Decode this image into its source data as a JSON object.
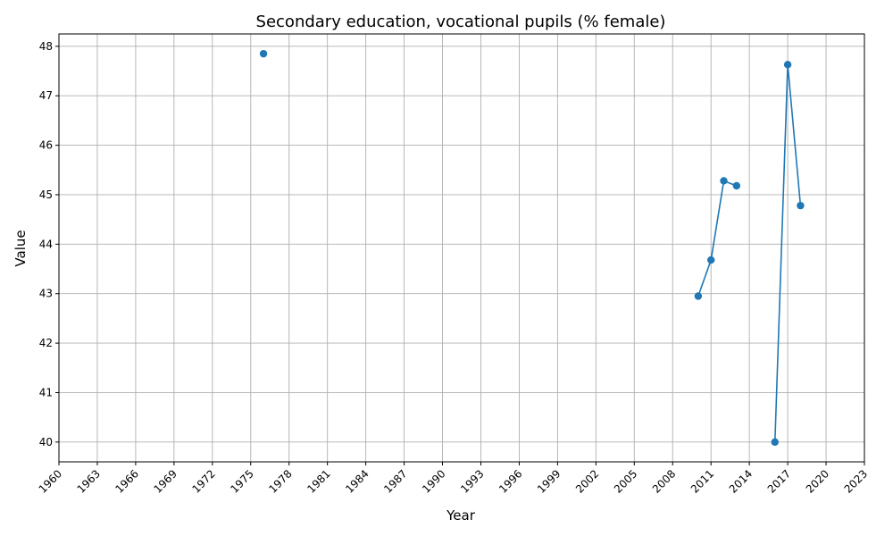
{
  "chart_data": {
    "type": "line",
    "title": "Secondary education, vocational pupils (% female)",
    "xlabel": "Year",
    "ylabel": "Value",
    "xlim": [
      1960,
      2023
    ],
    "ylim": [
      39.6,
      48.25
    ],
    "x_ticks": [
      1960,
      1963,
      1966,
      1969,
      1972,
      1975,
      1978,
      1981,
      1984,
      1987,
      1990,
      1993,
      1996,
      1999,
      2002,
      2005,
      2008,
      2011,
      2014,
      2017,
      2020,
      2023
    ],
    "y_ticks": [
      40,
      41,
      42,
      43,
      44,
      45,
      46,
      47,
      48
    ],
    "grid": true,
    "color": "#1f77b4",
    "series": [
      {
        "points": [
          {
            "x": 1976,
            "y": 47.85
          },
          {
            "x": 2010,
            "y": 42.95
          },
          {
            "x": 2011,
            "y": 43.68
          },
          {
            "x": 2012,
            "y": 45.28
          },
          {
            "x": 2013,
            "y": 45.18
          },
          {
            "x": 2016,
            "y": 40.0
          },
          {
            "x": 2017,
            "y": 47.63
          },
          {
            "x": 2018,
            "y": 44.78
          }
        ]
      }
    ]
  }
}
